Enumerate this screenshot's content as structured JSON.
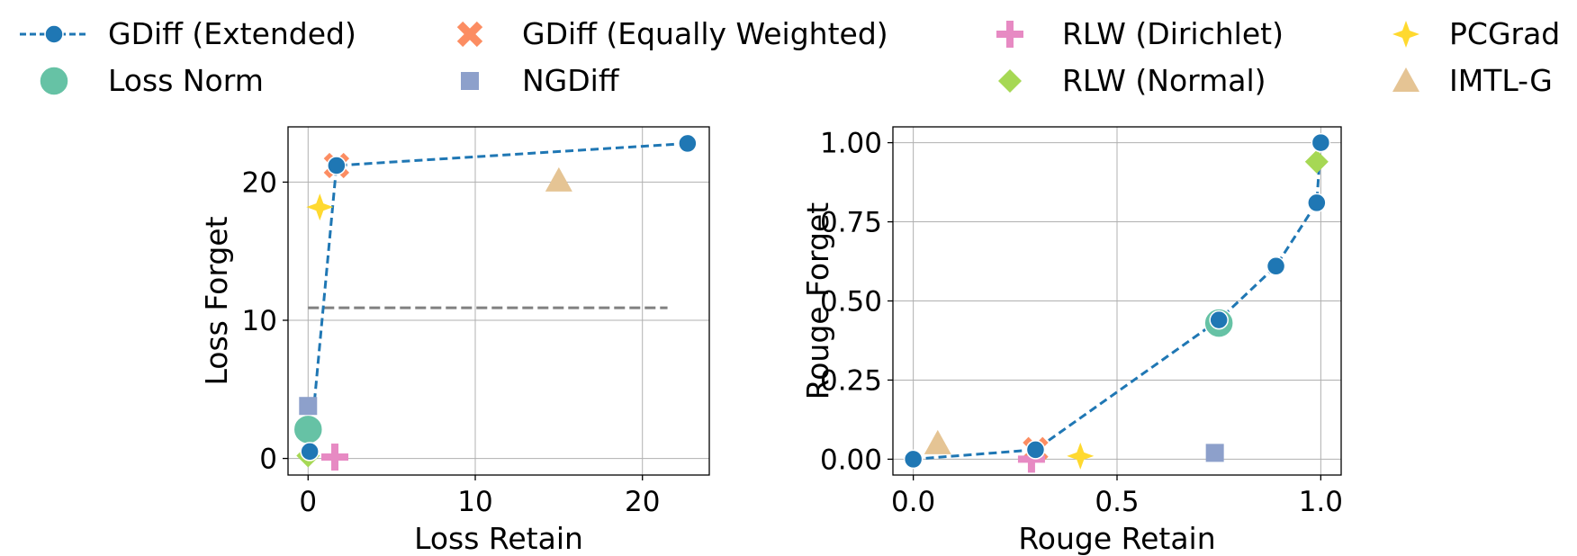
{
  "legend": [
    {
      "label": "GDiff (Extended)",
      "marker": "circle",
      "color": "#1f77b4",
      "line": true
    },
    {
      "label": "GDiff (Equally Weighted)",
      "marker": "x",
      "color": "#fc8d62"
    },
    {
      "label": "RLW (Dirichlet)",
      "marker": "plus",
      "color": "#e78ac3"
    },
    {
      "label": "PCGrad",
      "marker": "star4",
      "color": "#ffd92f"
    },
    {
      "label": "Loss Norm",
      "marker": "bigcircle",
      "color": "#66c2a5"
    },
    {
      "label": "NGDiff",
      "marker": "square",
      "color": "#8da0cb"
    },
    {
      "label": "RLW (Normal)",
      "marker": "diamond",
      "color": "#a6d854"
    },
    {
      "label": "IMTL-G",
      "marker": "triangle",
      "color": "#e5c494"
    }
  ],
  "chart_data": [
    {
      "type": "scatter",
      "xlabel": "Loss Retain",
      "ylabel": "Loss Forget",
      "xlim": [
        -1.2,
        24
      ],
      "ylim": [
        -1.2,
        24
      ],
      "xticks": [
        0,
        10,
        20
      ],
      "yticks": [
        0,
        10,
        20
      ],
      "grid": true,
      "reference_line": {
        "y": 10.9,
        "x_range": [
          0,
          21.5
        ],
        "style": "dashed",
        "color": "#808080"
      },
      "series": [
        {
          "name": "GDiff (Extended)",
          "style": "dashed-line-circle",
          "points": [
            [
              0.1,
              0.5
            ],
            [
              1.7,
              21.2
            ],
            [
              22.7,
              22.8
            ]
          ]
        },
        {
          "name": "GDiff (Equally Weighted)",
          "points": [
            [
              1.7,
              21.2
            ]
          ]
        },
        {
          "name": "RLW (Dirichlet)",
          "points": [
            [
              1.6,
              0.1
            ]
          ]
        },
        {
          "name": "PCGrad",
          "points": [
            [
              0.7,
              18.2
            ]
          ]
        },
        {
          "name": "Loss Norm",
          "points": [
            [
              0.0,
              2.1
            ]
          ]
        },
        {
          "name": "NGDiff",
          "points": [
            [
              0.0,
              3.8
            ]
          ]
        },
        {
          "name": "RLW (Normal)",
          "points": [
            [
              0.0,
              0.2
            ]
          ]
        },
        {
          "name": "IMTL-G",
          "points": [
            [
              15.0,
              20.1
            ]
          ]
        }
      ]
    },
    {
      "type": "scatter",
      "xlabel": "Rouge Retain",
      "ylabel": "Rouge Forget",
      "xlim": [
        -0.05,
        1.05
      ],
      "ylim": [
        -0.05,
        1.05
      ],
      "xticks": [
        "0.0",
        "0.5",
        "1.0"
      ],
      "yticks": [
        "0.00",
        "0.25",
        "0.50",
        "0.75",
        "1.00"
      ],
      "grid": true,
      "series": [
        {
          "name": "GDiff (Extended)",
          "style": "dashed-line-circle",
          "points": [
            [
              0.0,
              0.0
            ],
            [
              0.3,
              0.03
            ],
            [
              0.75,
              0.44
            ],
            [
              0.89,
              0.61
            ],
            [
              0.99,
              0.81
            ],
            [
              1.0,
              1.0
            ]
          ]
        },
        {
          "name": "GDiff (Equally Weighted)",
          "points": [
            [
              0.3,
              0.03
            ]
          ]
        },
        {
          "name": "RLW (Dirichlet)",
          "points": [
            [
              0.29,
              0.0
            ]
          ]
        },
        {
          "name": "PCGrad",
          "points": [
            [
              0.41,
              0.01
            ]
          ]
        },
        {
          "name": "Loss Norm",
          "points": [
            [
              0.75,
              0.43
            ]
          ]
        },
        {
          "name": "NGDiff",
          "points": [
            [
              0.74,
              0.02
            ]
          ]
        },
        {
          "name": "RLW (Normal)",
          "points": [
            [
              0.99,
              0.94
            ]
          ]
        },
        {
          "name": "IMTL-G",
          "points": [
            [
              0.06,
              0.05
            ]
          ]
        }
      ]
    }
  ]
}
